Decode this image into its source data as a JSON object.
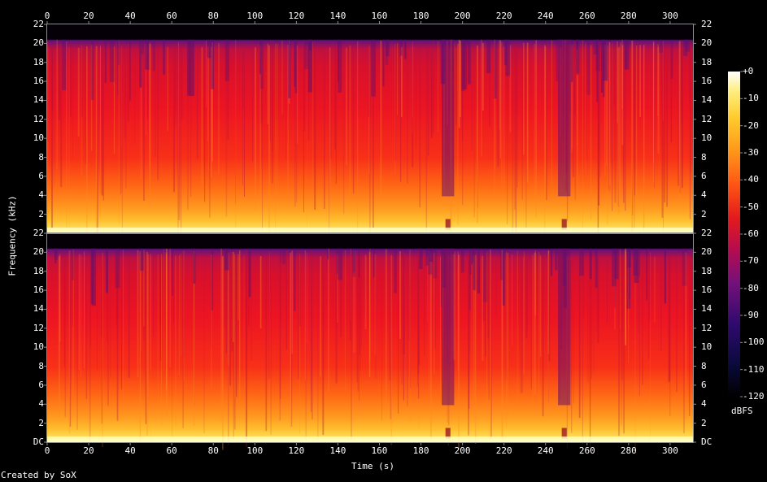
{
  "chart_data": {
    "type": "heatmap",
    "title": "",
    "xlabel": "Time (s)",
    "ylabel": "Frequency (kHz)",
    "x_range": [
      0,
      311
    ],
    "y_range": [
      0,
      22
    ],
    "x_ticks": [
      "0",
      "20",
      "40",
      "60",
      "80",
      "100",
      "120",
      "140",
      "160",
      "180",
      "200",
      "220",
      "240",
      "260",
      "280",
      "300"
    ],
    "y_ticks_top": [
      "2",
      "4",
      "6",
      "8",
      "10",
      "12",
      "14",
      "16",
      "18",
      "20",
      "22"
    ],
    "y_ticks_bottom": [
      "DC",
      "2",
      "4",
      "6",
      "8",
      "10",
      "12",
      "14",
      "16",
      "18",
      "20",
      "22"
    ],
    "channels": 2,
    "colorbar": {
      "label": "dBFS",
      "range": [
        -120,
        0
      ],
      "ticks": [
        "+0",
        "-10",
        "-20",
        "-30",
        "-40",
        "-50",
        "-60",
        "-70",
        "-80",
        "-90",
        "-100",
        "-110",
        "-120"
      ]
    },
    "content_cutoff_khz": 20.4,
    "quiet_segments_s": [
      [
        190,
        196
      ],
      [
        246,
        252
      ]
    ]
  },
  "footer": "Created by SoX",
  "colors": {
    "background": "#000000",
    "text": "#ffffff",
    "frame": "#8c8c8c"
  }
}
